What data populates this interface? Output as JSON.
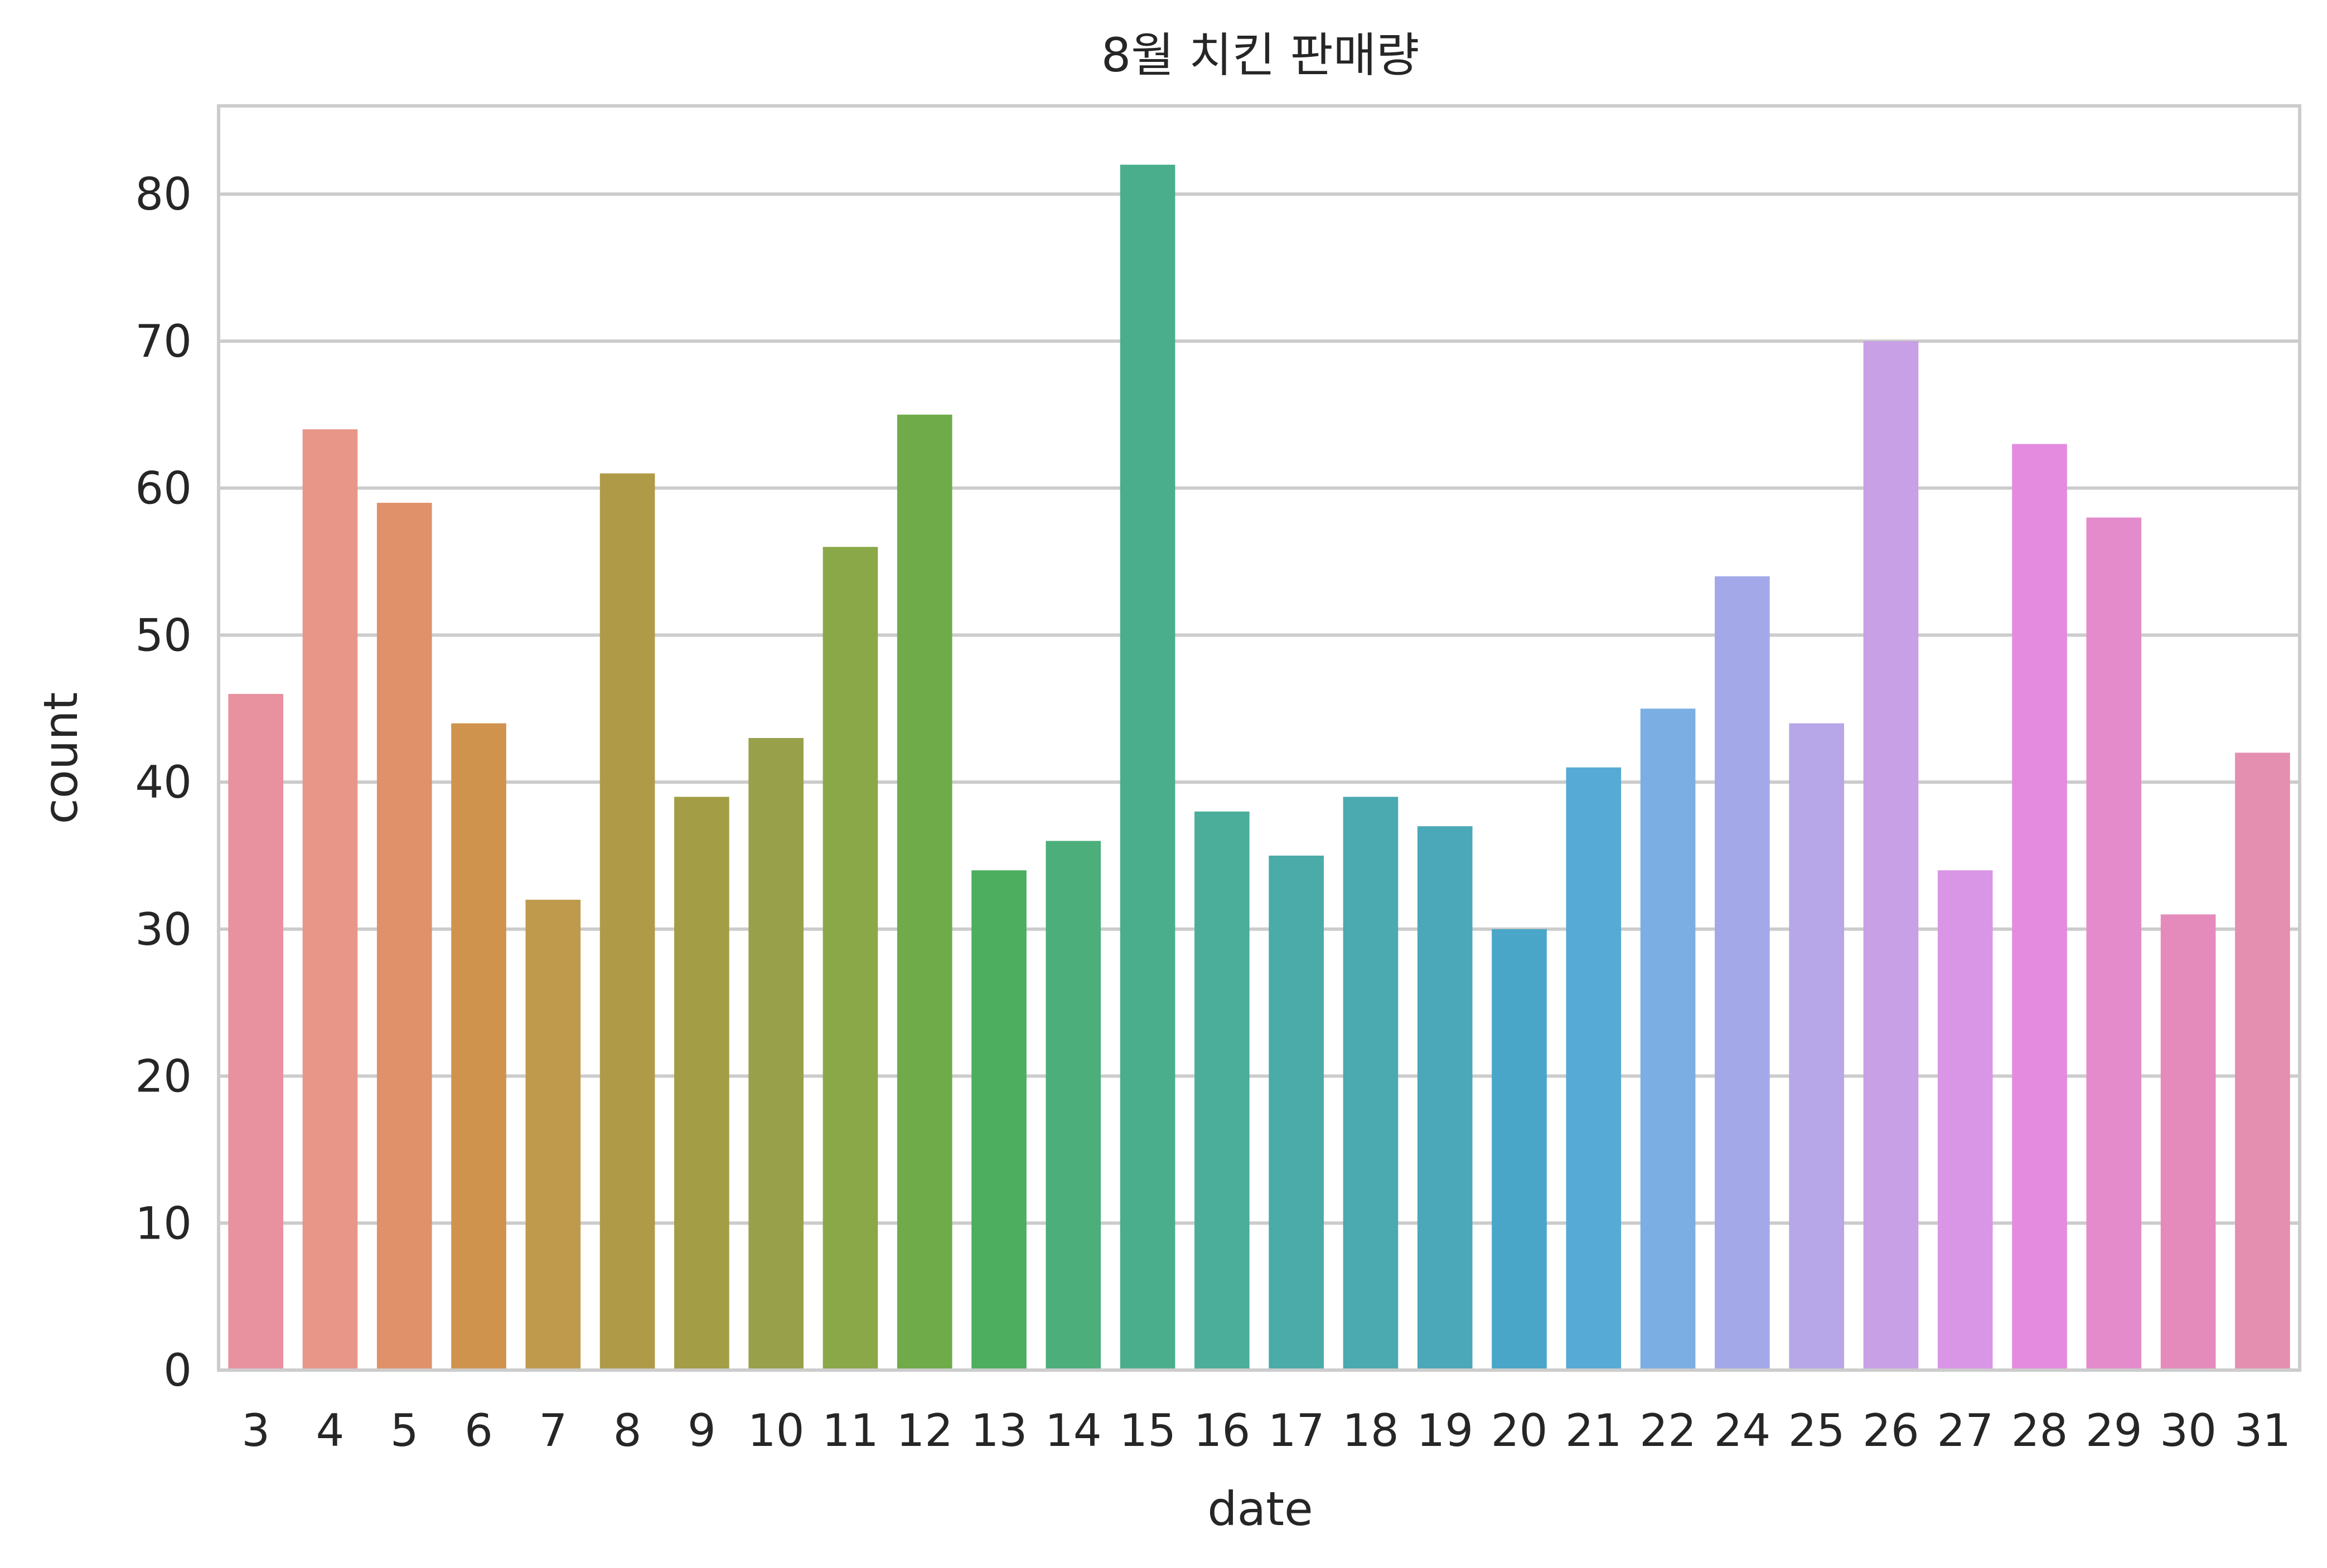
{
  "chart_data": {
    "type": "bar",
    "title": "8월 치킨 판매량",
    "xlabel": "date",
    "ylabel": "count",
    "categories": [
      "3",
      "4",
      "5",
      "6",
      "7",
      "8",
      "9",
      "10",
      "11",
      "12",
      "13",
      "14",
      "15",
      "16",
      "17",
      "18",
      "19",
      "20",
      "21",
      "22",
      "24",
      "25",
      "26",
      "27",
      "28",
      "29",
      "30",
      "31"
    ],
    "values": [
      46,
      64,
      59,
      44,
      32,
      61,
      39,
      43,
      56,
      65,
      34,
      36,
      82,
      38,
      35,
      39,
      37,
      30,
      41,
      45,
      54,
      44,
      70,
      34,
      63,
      58,
      31,
      42
    ],
    "colors": [
      "#e8919f",
      "#e89688",
      "#e0916a",
      "#d0934d",
      "#bf9a4d",
      "#af9b47",
      "#a39d45",
      "#98a04a",
      "#8aa848",
      "#6fab48",
      "#4cae5e",
      "#4cae7a",
      "#4aae8c",
      "#4aae9a",
      "#4aaba8",
      "#4aaab0",
      "#4aa8b8",
      "#4aa6c8",
      "#55aad6",
      "#7bafe3",
      "#a3a9e8",
      "#b7a6e8",
      "#c8a0e6",
      "#d996e6",
      "#e48be0",
      "#e48bcc",
      "#e48bbb",
      "#e48fb0"
    ],
    "yticks": [
      0,
      10,
      20,
      30,
      40,
      50,
      60,
      70,
      80
    ],
    "ylim": [
      0,
      86
    ],
    "grid": true,
    "legend": "none"
  }
}
